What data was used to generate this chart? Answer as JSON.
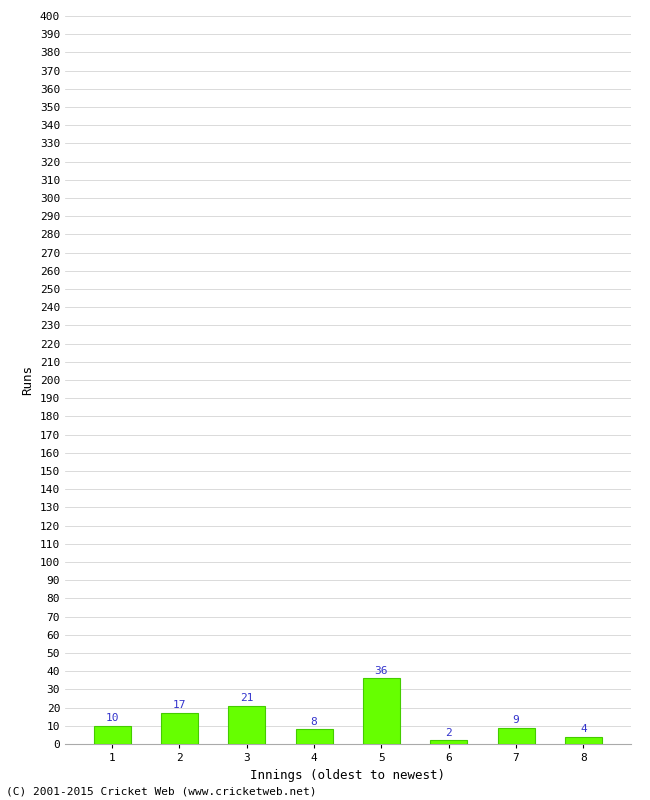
{
  "categories": [
    "1",
    "2",
    "3",
    "4",
    "5",
    "6",
    "7",
    "8"
  ],
  "values": [
    10,
    17,
    21,
    8,
    36,
    2,
    9,
    4
  ],
  "bar_color": "#66ff00",
  "bar_edge_color": "#44cc00",
  "value_color": "#3333cc",
  "xlabel": "Innings (oldest to newest)",
  "ylabel": "Runs",
  "ylim": [
    0,
    400
  ],
  "grid_color": "#cccccc",
  "background_color": "#ffffff",
  "footer_text": "(C) 2001-2015 Cricket Web (www.cricketweb.net)",
  "value_fontsize": 8,
  "label_fontsize": 9,
  "tick_fontsize": 8,
  "footer_fontsize": 8,
  "bar_width": 0.55
}
